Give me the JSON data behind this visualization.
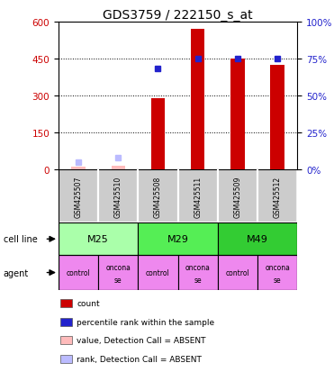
{
  "title": "GDS3759 / 222150_s_at",
  "samples": [
    "GSM425507",
    "GSM425510",
    "GSM425508",
    "GSM425511",
    "GSM425509",
    "GSM425512"
  ],
  "counts": [
    12,
    15,
    290,
    570,
    450,
    425
  ],
  "percentile_ranks": [
    5,
    8,
    68,
    75,
    75,
    75
  ],
  "absent_flags": [
    true,
    true,
    false,
    false,
    false,
    false
  ],
  "cell_lines": [
    {
      "label": "M25",
      "span": [
        0,
        2
      ],
      "color": "#aaffaa"
    },
    {
      "label": "M29",
      "span": [
        2,
        4
      ],
      "color": "#55ee55"
    },
    {
      "label": "M49",
      "span": [
        4,
        6
      ],
      "color": "#33cc33"
    }
  ],
  "agents": [
    "control",
    "onconase",
    "control",
    "onconase",
    "control",
    "onconase"
  ],
  "ylim_left": [
    0,
    600
  ],
  "yticks_left": [
    0,
    150,
    300,
    450,
    600
  ],
  "ylim_right": [
    0,
    100
  ],
  "yticks_right": [
    0,
    25,
    50,
    75,
    100
  ],
  "bar_color": "#cc0000",
  "rank_color": "#2222cc",
  "absent_bar_color": "#ffbbbb",
  "absent_rank_color": "#bbbbff",
  "agent_color": "#ee88ee",
  "gsm_bg_color": "#cccccc",
  "title_fontsize": 10,
  "left_color": "#cc0000",
  "right_color": "#2222cc",
  "legend_items": [
    {
      "color": "#cc0000",
      "label": "count"
    },
    {
      "color": "#2222cc",
      "label": "percentile rank within the sample"
    },
    {
      "color": "#ffbbbb",
      "label": "value, Detection Call = ABSENT"
    },
    {
      "color": "#bbbbff",
      "label": "rank, Detection Call = ABSENT"
    }
  ]
}
